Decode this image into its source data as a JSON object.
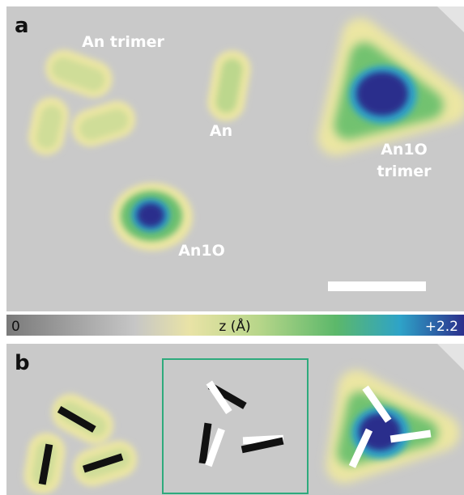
{
  "panels": [
    {
      "label": "a",
      "annotations": [
        {
          "lines": [
            "An trimer"
          ]
        },
        {
          "lines": [
            "An"
          ]
        },
        {
          "lines": [
            "An1O"
          ]
        },
        {
          "lines": [
            "An1O",
            "trimer"
          ]
        }
      ]
    },
    {
      "label": "b"
    }
  ],
  "colorbar": {
    "min_label": "0",
    "axis_label": "z (Å)",
    "max_label": "+2.2"
  }
}
